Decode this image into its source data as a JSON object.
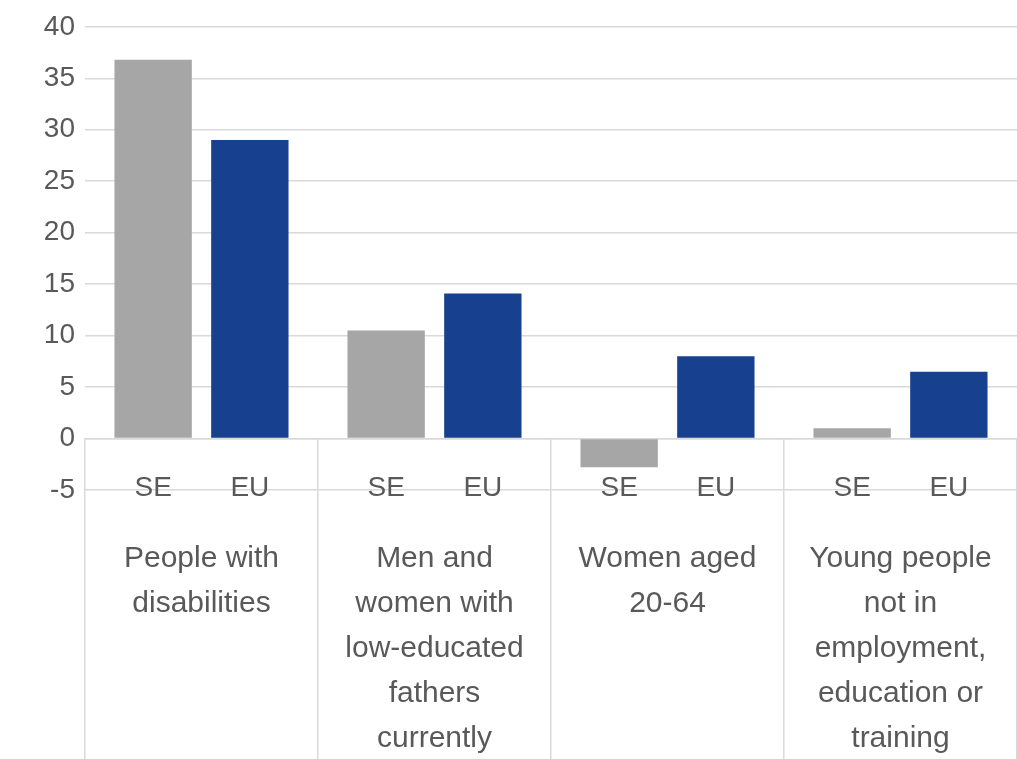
{
  "chart_data": {
    "type": "bar",
    "categories": [
      "People with disabilities",
      "Men and women with low-educated fathers currently",
      "Women aged 20-64",
      "Young people not in employment, education or training"
    ],
    "series": [
      {
        "name": "SE",
        "color": "#a6a6a6",
        "values": [
          36.8,
          10.5,
          -2.8,
          1.0
        ]
      },
      {
        "name": "EU",
        "color": "#17408f",
        "values": [
          29.0,
          14.1,
          8.0,
          6.5
        ]
      }
    ],
    "ylim": [
      -5,
      40
    ],
    "yticks": [
      -5,
      0,
      5,
      10,
      15,
      20,
      25,
      30,
      35,
      40
    ],
    "grid": "y",
    "legend": false
  }
}
